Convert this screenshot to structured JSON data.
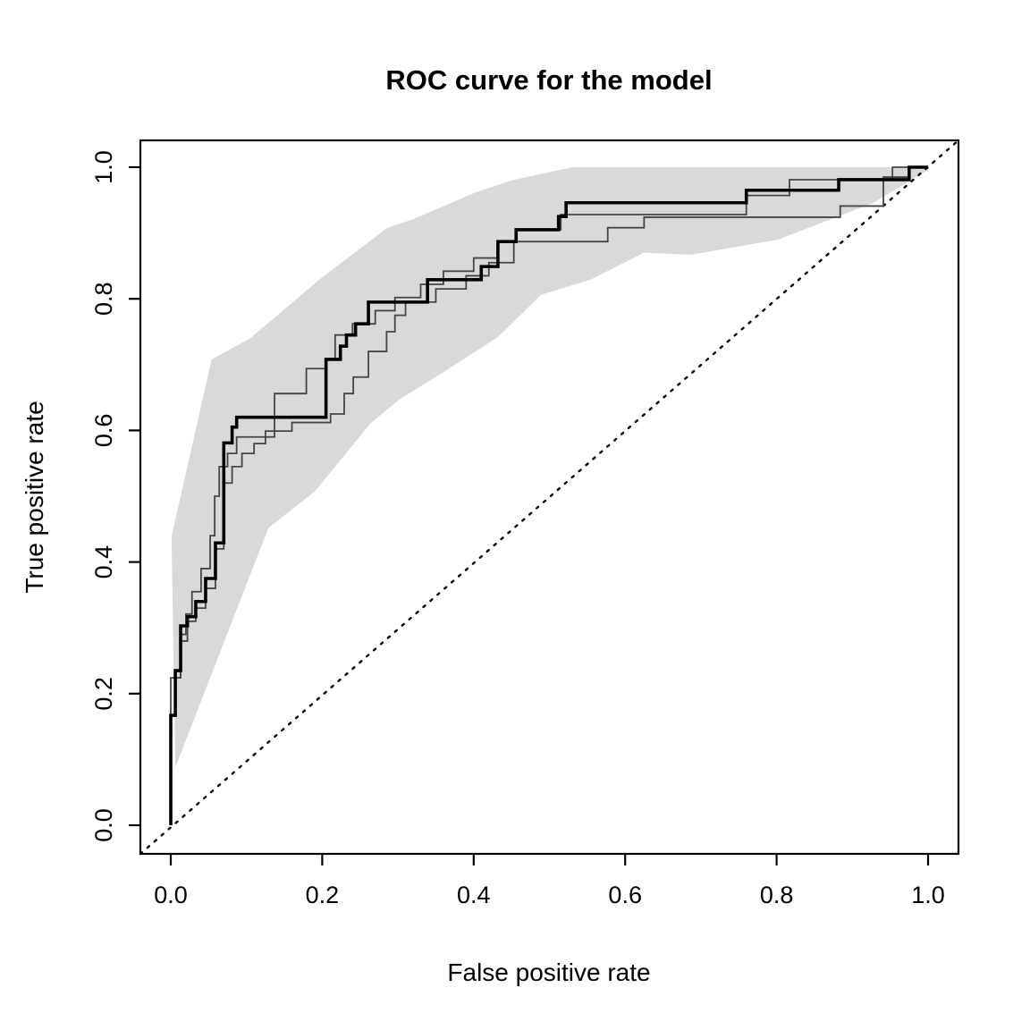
{
  "figure": {
    "title": "ROC curve for the model"
  },
  "chart_data": {
    "type": "line",
    "title": "ROC curve for the model",
    "xlabel": "False positive rate",
    "ylabel": "True positive rate",
    "xlim": [
      0.0,
      1.0
    ],
    "ylim": [
      0.0,
      1.0
    ],
    "axis_padding_fraction": 0.04,
    "grid": false,
    "legend": "none",
    "x_ticks": [
      0.0,
      0.2,
      0.4,
      0.6,
      0.8,
      1.0
    ],
    "x_tick_labels": [
      "0.0",
      "0.2",
      "0.4",
      "0.6",
      "0.8",
      "1.0"
    ],
    "y_ticks": [
      0.0,
      0.2,
      0.4,
      0.6,
      0.8,
      1.0
    ],
    "y_tick_labels": [
      "0.0",
      "0.2",
      "0.4",
      "0.6",
      "0.8",
      "1.0"
    ],
    "colors": {
      "main_curve": "#000000",
      "resample_curves": "#454545",
      "confidence_band": "#d9d9d9",
      "reference_line": "#000000",
      "box": "#000000"
    },
    "reference_line": {
      "name": "chance-diagonal",
      "style": "dotted",
      "from": [
        0.0,
        0.0
      ],
      "to": [
        1.0,
        1.0
      ]
    },
    "confidence_band": {
      "name": "roc-confidence-band",
      "upper": [
        [
          0.006,
          0.088
        ],
        [
          0.001,
          0.439
        ],
        [
          0.054,
          0.708
        ],
        [
          0.105,
          0.74
        ],
        [
          0.196,
          0.829
        ],
        [
          0.286,
          0.908
        ],
        [
          0.32,
          0.921
        ],
        [
          0.403,
          0.962
        ],
        [
          0.45,
          0.98
        ],
        [
          0.53,
          1.0
        ],
        [
          1.0,
          1.0
        ]
      ],
      "lower": [
        [
          0.006,
          0.088
        ],
        [
          0.129,
          0.452
        ],
        [
          0.19,
          0.507
        ],
        [
          0.264,
          0.611
        ],
        [
          0.302,
          0.647
        ],
        [
          0.362,
          0.69
        ],
        [
          0.432,
          0.742
        ],
        [
          0.489,
          0.806
        ],
        [
          0.554,
          0.829
        ],
        [
          0.625,
          0.87
        ],
        [
          0.687,
          0.867
        ],
        [
          0.802,
          0.89
        ],
        [
          0.928,
          0.946
        ],
        [
          1.0,
          0.996
        ]
      ]
    },
    "series": [
      {
        "name": "roc-curve-main",
        "role": "main",
        "stroke_width": 3.6,
        "points": [
          [
            0.0,
            0.0
          ],
          [
            0.0,
            0.167
          ],
          [
            0.006,
            0.167
          ],
          [
            0.006,
            0.235
          ],
          [
            0.013,
            0.235
          ],
          [
            0.013,
            0.303
          ],
          [
            0.022,
            0.303
          ],
          [
            0.022,
            0.317
          ],
          [
            0.033,
            0.317
          ],
          [
            0.033,
            0.34
          ],
          [
            0.046,
            0.34
          ],
          [
            0.046,
            0.375
          ],
          [
            0.059,
            0.375
          ],
          [
            0.059,
            0.429
          ],
          [
            0.07,
            0.429
          ],
          [
            0.07,
            0.581
          ],
          [
            0.081,
            0.581
          ],
          [
            0.081,
            0.605
          ],
          [
            0.087,
            0.605
          ],
          [
            0.087,
            0.62
          ],
          [
            0.205,
            0.62
          ],
          [
            0.205,
            0.708
          ],
          [
            0.224,
            0.708
          ],
          [
            0.224,
            0.728
          ],
          [
            0.232,
            0.728
          ],
          [
            0.232,
            0.745
          ],
          [
            0.244,
            0.745
          ],
          [
            0.244,
            0.762
          ],
          [
            0.261,
            0.762
          ],
          [
            0.261,
            0.795
          ],
          [
            0.339,
            0.795
          ],
          [
            0.339,
            0.829
          ],
          [
            0.41,
            0.829
          ],
          [
            0.41,
            0.849
          ],
          [
            0.432,
            0.849
          ],
          [
            0.432,
            0.887
          ],
          [
            0.456,
            0.887
          ],
          [
            0.456,
            0.905
          ],
          [
            0.512,
            0.905
          ],
          [
            0.512,
            0.925
          ],
          [
            0.522,
            0.925
          ],
          [
            0.522,
            0.946
          ],
          [
            0.76,
            0.946
          ],
          [
            0.76,
            0.965
          ],
          [
            0.882,
            0.965
          ],
          [
            0.882,
            0.981
          ],
          [
            0.975,
            0.981
          ],
          [
            0.975,
            1.0
          ],
          [
            1.0,
            1.0
          ]
        ]
      },
      {
        "name": "roc-curve-resample-1",
        "role": "resample",
        "stroke_width": 1.8,
        "points": [
          [
            0.0,
            0.0
          ],
          [
            0.0,
            0.224
          ],
          [
            0.013,
            0.224
          ],
          [
            0.013,
            0.29
          ],
          [
            0.02,
            0.29
          ],
          [
            0.02,
            0.321
          ],
          [
            0.028,
            0.321
          ],
          [
            0.028,
            0.355
          ],
          [
            0.04,
            0.355
          ],
          [
            0.04,
            0.39
          ],
          [
            0.052,
            0.39
          ],
          [
            0.052,
            0.44
          ],
          [
            0.058,
            0.44
          ],
          [
            0.058,
            0.5
          ],
          [
            0.064,
            0.5
          ],
          [
            0.064,
            0.545
          ],
          [
            0.075,
            0.545
          ],
          [
            0.075,
            0.565
          ],
          [
            0.087,
            0.565
          ],
          [
            0.087,
            0.59
          ],
          [
            0.137,
            0.59
          ],
          [
            0.137,
            0.656
          ],
          [
            0.179,
            0.656
          ],
          [
            0.179,
            0.694
          ],
          [
            0.205,
            0.694
          ],
          [
            0.205,
            0.708
          ],
          [
            0.217,
            0.708
          ],
          [
            0.217,
            0.745
          ],
          [
            0.24,
            0.745
          ],
          [
            0.24,
            0.762
          ],
          [
            0.27,
            0.762
          ],
          [
            0.27,
            0.782
          ],
          [
            0.296,
            0.782
          ],
          [
            0.296,
            0.802
          ],
          [
            0.33,
            0.802
          ],
          [
            0.33,
            0.822
          ],
          [
            0.36,
            0.822
          ],
          [
            0.36,
            0.842
          ],
          [
            0.4,
            0.842
          ],
          [
            0.4,
            0.862
          ],
          [
            0.432,
            0.862
          ],
          [
            0.432,
            0.887
          ],
          [
            0.456,
            0.887
          ],
          [
            0.456,
            0.905
          ],
          [
            0.515,
            0.905
          ],
          [
            0.515,
            0.928
          ],
          [
            0.76,
            0.928
          ],
          [
            0.76,
            0.957
          ],
          [
            0.817,
            0.957
          ],
          [
            0.817,
            0.981
          ],
          [
            0.953,
            0.981
          ],
          [
            0.953,
            1.0
          ],
          [
            1.0,
            1.0
          ]
        ]
      },
      {
        "name": "roc-curve-resample-2",
        "role": "resample",
        "stroke_width": 1.8,
        "points": [
          [
            0.0,
            0.0
          ],
          [
            0.0,
            0.167
          ],
          [
            0.006,
            0.167
          ],
          [
            0.006,
            0.224
          ],
          [
            0.013,
            0.224
          ],
          [
            0.013,
            0.28
          ],
          [
            0.022,
            0.28
          ],
          [
            0.022,
            0.31
          ],
          [
            0.033,
            0.31
          ],
          [
            0.033,
            0.33
          ],
          [
            0.046,
            0.33
          ],
          [
            0.046,
            0.36
          ],
          [
            0.059,
            0.36
          ],
          [
            0.059,
            0.42
          ],
          [
            0.07,
            0.42
          ],
          [
            0.07,
            0.52
          ],
          [
            0.081,
            0.52
          ],
          [
            0.081,
            0.545
          ],
          [
            0.094,
            0.545
          ],
          [
            0.094,
            0.565
          ],
          [
            0.11,
            0.565
          ],
          [
            0.11,
            0.58
          ],
          [
            0.125,
            0.58
          ],
          [
            0.125,
            0.599
          ],
          [
            0.16,
            0.599
          ],
          [
            0.16,
            0.612
          ],
          [
            0.211,
            0.612
          ],
          [
            0.211,
            0.625
          ],
          [
            0.229,
            0.625
          ],
          [
            0.229,
            0.656
          ],
          [
            0.241,
            0.656
          ],
          [
            0.241,
            0.681
          ],
          [
            0.261,
            0.681
          ],
          [
            0.261,
            0.72
          ],
          [
            0.285,
            0.72
          ],
          [
            0.285,
            0.75
          ],
          [
            0.296,
            0.75
          ],
          [
            0.296,
            0.775
          ],
          [
            0.31,
            0.775
          ],
          [
            0.31,
            0.795
          ],
          [
            0.35,
            0.795
          ],
          [
            0.35,
            0.815
          ],
          [
            0.39,
            0.815
          ],
          [
            0.39,
            0.835
          ],
          [
            0.42,
            0.835
          ],
          [
            0.42,
            0.855
          ],
          [
            0.453,
            0.855
          ],
          [
            0.453,
            0.887
          ],
          [
            0.577,
            0.887
          ],
          [
            0.577,
            0.908
          ],
          [
            0.625,
            0.908
          ],
          [
            0.625,
            0.924
          ],
          [
            0.884,
            0.924
          ],
          [
            0.884,
            0.941
          ],
          [
            0.941,
            0.941
          ],
          [
            0.941,
            0.985
          ],
          [
            0.975,
            0.985
          ],
          [
            0.975,
            1.0
          ],
          [
            1.0,
            1.0
          ]
        ]
      }
    ]
  }
}
